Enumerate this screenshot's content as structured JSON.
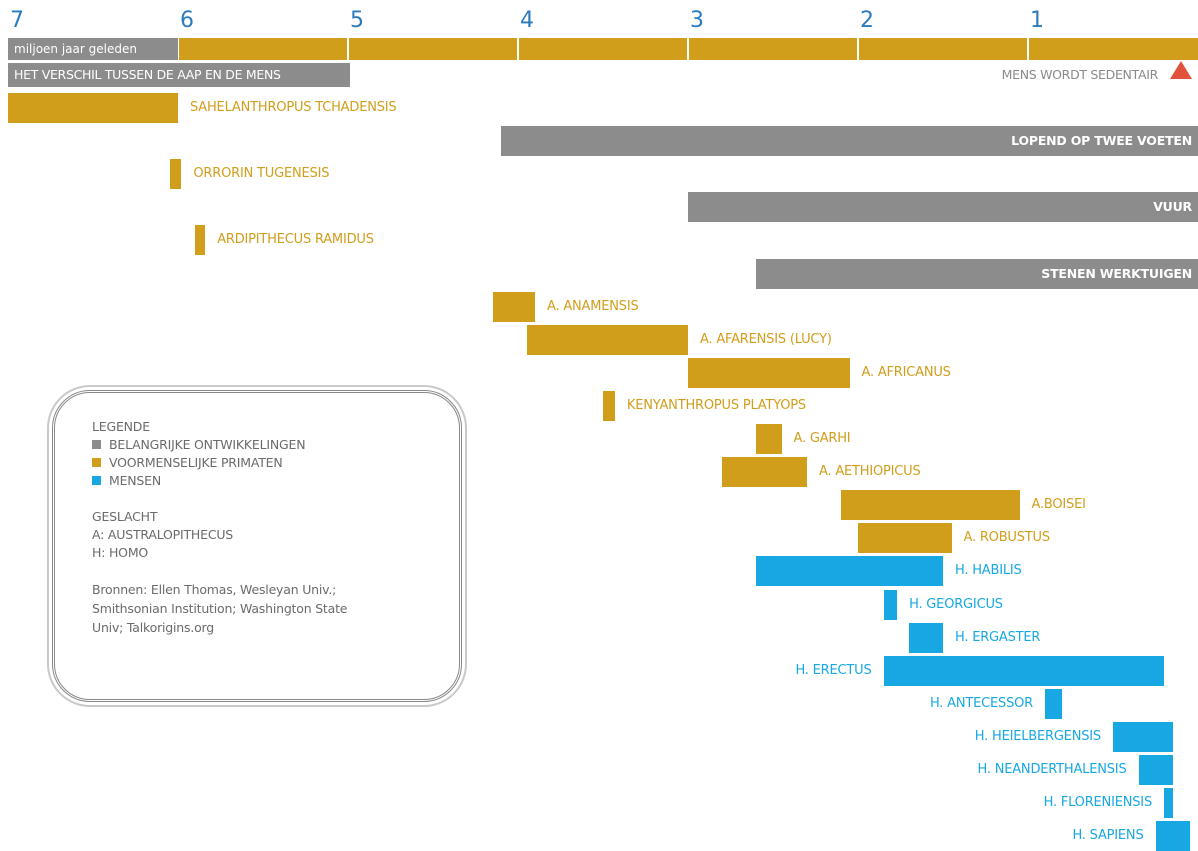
{
  "colors": {
    "development": "#8c8c8c",
    "prehuman": "#d19e1c",
    "human": "#17a8e3",
    "marker": "#e2513b",
    "tick": "#2b7bbf"
  },
  "axis": {
    "unit_label": "miljoen jaar geleden",
    "ticks": [
      "7",
      "6",
      "5",
      "4",
      "3",
      "2",
      "1"
    ]
  },
  "header": {
    "subtitle": "HET VERSCHIL TUSSEN DE AAP EN DE MENS",
    "sedentary_label": "MENS WORDT SEDENTAIR"
  },
  "legend": {
    "title": "LEGENDE",
    "items": [
      {
        "label": "BELANGRIJKE ONTWIKKELINGEN",
        "color": "#8c8c8c"
      },
      {
        "label": "VOORMENSELIJKE PRIMATEN",
        "color": "#d19e1c"
      },
      {
        "label": "MENSEN",
        "color": "#17a8e3"
      }
    ],
    "genus_title": "GESLACHT",
    "genus_a": "A: AUSTRALOPITHECUS",
    "genus_h": "H: HOMO",
    "sources": [
      "Bronnen: Ellen Thomas, Wesleyan Univ.;",
      "Smithsonian Institution; Washington State",
      "Univ; Talkorigins.org"
    ]
  },
  "chart_data": {
    "type": "bar",
    "orientation": "horizontal-timeline",
    "x_unit": "miljoen jaar geleden",
    "xlim": [
      7,
      0
    ],
    "rows": [
      {
        "name": "SAHELANTHROPUS TCHADENSIS",
        "category": "prehuman",
        "start": 7.0,
        "end": 6.0,
        "label_side": "right"
      },
      {
        "name": "LOPEND OP TWEE VOETEN",
        "category": "development",
        "start": 4.1,
        "end": 0.0,
        "label_side": "inside"
      },
      {
        "name": "ORRORIN TUGENESIS",
        "category": "prehuman",
        "start": 6.05,
        "end": 5.98,
        "label_side": "right"
      },
      {
        "name": "VUUR",
        "category": "development",
        "start": 3.0,
        "end": 0.0,
        "label_side": "inside"
      },
      {
        "name": "ARDIPITHECUS RAMIDUS",
        "category": "prehuman",
        "start": 5.9,
        "end": 5.84,
        "label_side": "right"
      },
      {
        "name": "STENEN WERKTUIGEN",
        "category": "development",
        "start": 2.6,
        "end": 0.0,
        "label_side": "inside"
      },
      {
        "name": "A. ANAMENSIS",
        "category": "prehuman",
        "start": 4.15,
        "end": 3.9,
        "label_side": "right"
      },
      {
        "name": "A. AFARENSIS (LUCY)",
        "category": "prehuman",
        "start": 3.95,
        "end": 3.0,
        "label_side": "right"
      },
      {
        "name": "A. AFRICANUS",
        "category": "prehuman",
        "start": 3.0,
        "end": 2.05,
        "label_side": "right"
      },
      {
        "name": "KENYANTHROPUS PLATYOPS",
        "category": "prehuman",
        "start": 3.5,
        "end": 3.43,
        "label_side": "right"
      },
      {
        "name": "A. GARHI",
        "category": "prehuman",
        "start": 2.6,
        "end": 2.45,
        "label_side": "right"
      },
      {
        "name": "A. AETHIOPICUS",
        "category": "prehuman",
        "start": 2.8,
        "end": 2.3,
        "label_side": "right"
      },
      {
        "name": "A.BOISEI",
        "category": "prehuman",
        "start": 2.1,
        "end": 1.05,
        "label_side": "right"
      },
      {
        "name": "A. ROBUSTUS",
        "category": "prehuman",
        "start": 2.0,
        "end": 1.45,
        "label_side": "right"
      },
      {
        "name": "H. HABILIS",
        "category": "human",
        "start": 2.6,
        "end": 1.5,
        "label_side": "right"
      },
      {
        "name": "H. GEORGICUS",
        "category": "human",
        "start": 1.85,
        "end": 1.77,
        "label_side": "right"
      },
      {
        "name": "H. ERGASTER",
        "category": "human",
        "start": 1.7,
        "end": 1.5,
        "label_side": "right"
      },
      {
        "name": "H. ERECTUS",
        "category": "human",
        "start": 1.85,
        "end": 0.2,
        "label_side": "left"
      },
      {
        "name": "H. ANTECESSOR",
        "category": "human",
        "start": 0.9,
        "end": 0.8,
        "label_side": "left"
      },
      {
        "name": "H. HEIELBERGENSIS",
        "category": "human",
        "start": 0.5,
        "end": 0.15,
        "label_side": "left"
      },
      {
        "name": "H. NEANDERTHALENSIS",
        "category": "human",
        "start": 0.35,
        "end": 0.15,
        "label_side": "left"
      },
      {
        "name": "H. FLORENIENSIS",
        "category": "human",
        "start": 0.2,
        "end": 0.15,
        "label_side": "left"
      },
      {
        "name": "H. SAPIENS",
        "category": "human",
        "start": 0.25,
        "end": 0.05,
        "label_side": "left"
      }
    ]
  }
}
